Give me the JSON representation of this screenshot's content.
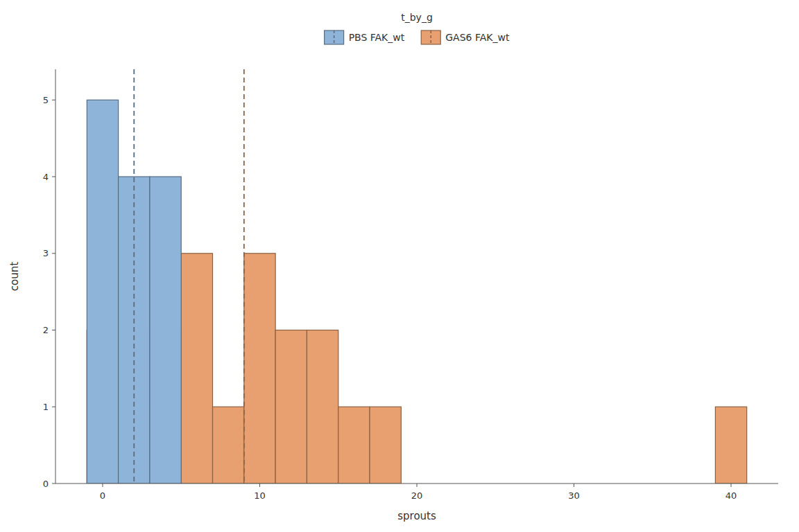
{
  "chart_data": {
    "type": "histogram",
    "xlabel": "sprouts",
    "ylabel": "count",
    "legend_title": "t_by_g",
    "series": [
      {
        "name": "PBS FAK_wt",
        "color": "#8fb4d9",
        "bins": [
          -1,
          1,
          3,
          5
        ],
        "values": [
          5,
          4,
          4
        ],
        "mean": 2.0
      },
      {
        "name": "GAS6 FAK_wt",
        "color": "#e8a070",
        "bins": [
          -1,
          1,
          3,
          5,
          7,
          9,
          11,
          13,
          15,
          17,
          19,
          39,
          41
        ],
        "values": [
          2,
          1,
          2,
          3,
          1,
          3,
          2,
          2,
          1,
          1,
          0,
          1
        ],
        "mean": 9.0
      }
    ],
    "xlim": [
      -3,
      43
    ],
    "ylim": [
      0,
      5.4
    ],
    "xticks": [
      0,
      10,
      20,
      30,
      40
    ],
    "yticks": [
      0,
      1,
      2,
      3,
      4,
      5
    ],
    "grid": false,
    "legend": "top"
  }
}
